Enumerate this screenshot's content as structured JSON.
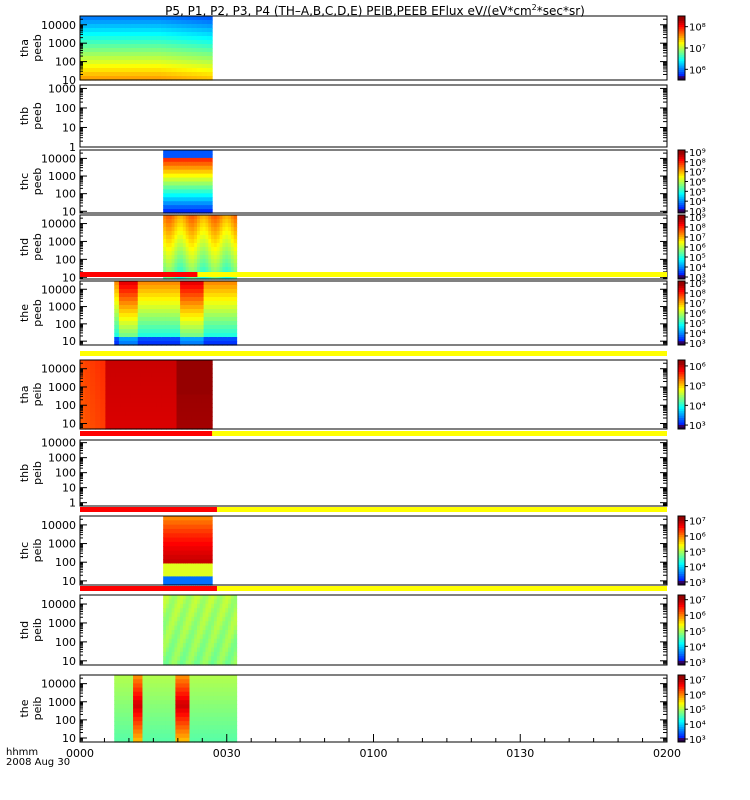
{
  "chart_data": {
    "type": "heatmap",
    "title": "P5, P1, P2, P3, P4 (TH–A,B,C,D,E) PEIB,PEEB EFlux eV/(eV*cm",
    "title_sup": "2",
    "title_end": "*sec*sr)",
    "x_time_labels": [
      "0000",
      "0030",
      "0100",
      "0130",
      "0200"
    ],
    "x_footer_label": "hhmm",
    "date_label": "2008 Aug 30",
    "panels": [
      {
        "probe": "tha",
        "product": "peeb",
        "ylim": [
          10,
          30000
        ],
        "yticks": [
          "10",
          "100",
          "1000",
          "10000"
        ],
        "data_range": [
          "0000",
          "0027"
        ],
        "cbar_ticks": [
          "10⁸",
          "10⁷",
          "10⁶"
        ],
        "cbar_exp": [
          8,
          7,
          6
        ],
        "cbar_range": [
          5.5,
          8.5
        ],
        "flag_bar": null
      },
      {
        "probe": "thb",
        "product": "peeb",
        "ylim": [
          1,
          1500
        ],
        "yticks": [
          "1",
          "10",
          "100",
          "1000"
        ],
        "data_range": null,
        "cbar_ticks": [],
        "cbar_exp": [],
        "cbar_range": null,
        "flag_bar": null
      },
      {
        "probe": "thc",
        "product": "peeb",
        "ylim": [
          8,
          30000
        ],
        "yticks": [
          "10",
          "100",
          "1000",
          "10000"
        ],
        "data_range": [
          "0017",
          "0027"
        ],
        "cbar_ticks": [
          "10⁹",
          "10⁸",
          "10⁷",
          "10⁶",
          "10⁵",
          "10⁴",
          "10³"
        ],
        "cbar_exp": [
          9,
          8,
          7,
          6,
          5,
          4,
          3
        ],
        "cbar_range": [
          2.8,
          9.2
        ],
        "flag_bar": null
      },
      {
        "probe": "thd",
        "product": "peeb",
        "ylim": [
          8,
          30000
        ],
        "yticks": [
          "10",
          "100",
          "1000",
          "10000"
        ],
        "data_range": [
          "0017",
          "0032"
        ],
        "cbar_ticks": [
          "10⁹",
          "10⁸",
          "10⁷",
          "10⁶",
          "10⁵",
          "10⁴",
          "10³"
        ],
        "cbar_exp": [
          9,
          8,
          7,
          6,
          5,
          4,
          3
        ],
        "cbar_range": [
          2.8,
          9.2
        ],
        "flag_bar": null
      },
      {
        "probe": "the",
        "product": "peeb",
        "ylim": [
          6,
          30000
        ],
        "yticks": [
          "10",
          "100",
          "1000",
          "10000"
        ],
        "data_range": [
          "0007",
          "0032"
        ],
        "cbar_ticks": [
          "10⁹",
          "10⁸",
          "10⁷",
          "10⁶",
          "10⁵",
          "10⁴",
          "10³"
        ],
        "cbar_exp": [
          9,
          8,
          7,
          6,
          5,
          4,
          3
        ],
        "cbar_range": [
          2.8,
          9.2
        ],
        "flag_bar": {
          "red_end": "0024"
        }
      },
      {
        "probe": "tha",
        "product": "peib",
        "ylim": [
          5,
          30000
        ],
        "yticks": [
          "10",
          "100",
          "1000",
          "10000"
        ],
        "data_range": [
          "0000",
          "0027"
        ],
        "cbar_ticks": [
          "10⁶",
          "10⁵",
          "10⁴",
          "10³"
        ],
        "cbar_exp": [
          6,
          5,
          4,
          3
        ],
        "cbar_range": [
          2.8,
          6.3
        ],
        "flag_bar": {
          "red_end": null
        }
      },
      {
        "probe": "thb",
        "product": "peib",
        "ylim": [
          0.6,
          15000
        ],
        "yticks": [
          "1",
          "10",
          "100",
          "1000",
          "10000"
        ],
        "data_range": null,
        "cbar_ticks": [],
        "cbar_exp": [],
        "cbar_range": null,
        "flag_bar": {
          "red_end": "0027"
        }
      },
      {
        "probe": "thc",
        "product": "peib",
        "ylim": [
          6,
          30000
        ],
        "yticks": [
          "10",
          "100",
          "1000",
          "10000"
        ],
        "data_range": [
          "0017",
          "0027"
        ],
        "cbar_ticks": [
          "10⁷",
          "10⁶",
          "10⁵",
          "10⁴",
          "10³"
        ],
        "cbar_exp": [
          7,
          6,
          5,
          4,
          3
        ],
        "cbar_range": [
          2.8,
          7.3
        ],
        "flag_bar": {
          "red_end": "0028"
        }
      },
      {
        "probe": "thd",
        "product": "peib",
        "ylim": [
          6,
          30000
        ],
        "yticks": [
          "10",
          "100",
          "1000",
          "10000"
        ],
        "data_range": [
          "0017",
          "0032"
        ],
        "cbar_ticks": [
          "10⁷",
          "10⁶",
          "10⁵",
          "10⁴",
          "10³"
        ],
        "cbar_exp": [
          7,
          6,
          5,
          4,
          3
        ],
        "cbar_range": [
          2.8,
          7.3
        ],
        "flag_bar": {
          "red_end": "0028"
        }
      },
      {
        "probe": "the",
        "product": "peib",
        "ylim": [
          6,
          30000
        ],
        "yticks": [
          "10",
          "100",
          "1000",
          "10000"
        ],
        "data_range": [
          "0007",
          "0032"
        ],
        "cbar_ticks": [
          "10⁷",
          "10⁶",
          "10⁵",
          "10⁴",
          "10³"
        ],
        "cbar_exp": [
          7,
          6,
          5,
          4,
          3
        ],
        "cbar_range": [
          2.8,
          7.3
        ],
        "flag_bar": null
      }
    ]
  }
}
